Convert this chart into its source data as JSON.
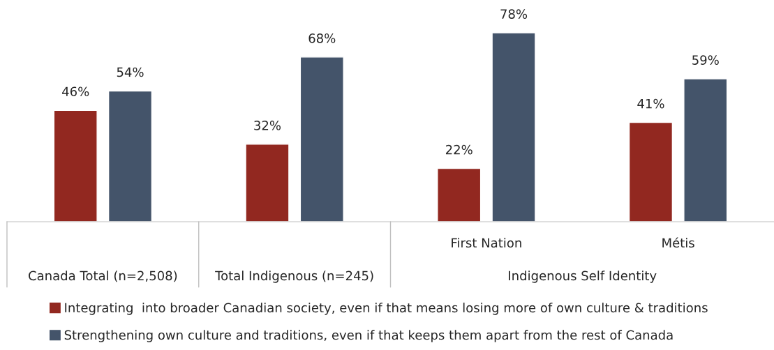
{
  "chart_data": {
    "type": "bar",
    "categories": [
      "Canada Total (n=2,508)",
      "Total Indigenous (n=245)",
      "First Nation",
      "Métis"
    ],
    "annotations": [
      "Indigenous Self Identity"
    ],
    "series": [
      {
        "name": "Integrating  into broader Canadian society, even if that means losing more of own culture & traditions",
        "color": "#922820",
        "values": [
          46,
          32,
          22,
          41
        ],
        "value_labels": [
          "46%",
          "32%",
          "22%",
          "41%"
        ]
      },
      {
        "name": "Strengthening own culture and traditions, even if that keeps them apart from the rest of Canada",
        "color": "#44546a",
        "values": [
          54,
          68,
          78,
          59
        ],
        "value_labels": [
          "54%",
          "68%",
          "78%",
          "59%"
        ]
      }
    ],
    "legend": "bottom"
  }
}
